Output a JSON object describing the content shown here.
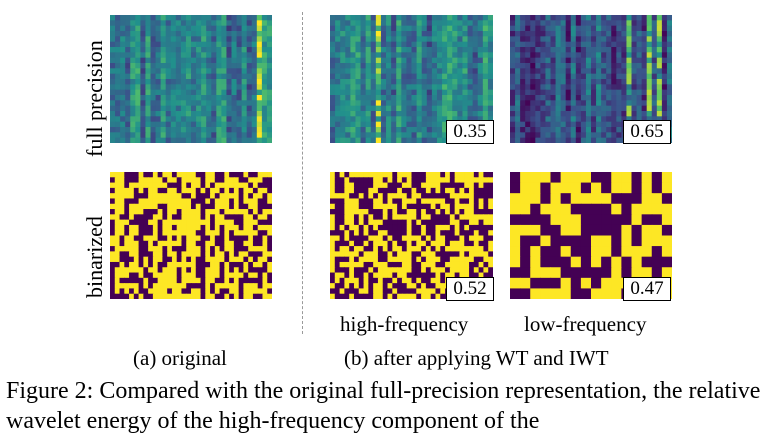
{
  "row_labels": {
    "full_precision": "full precision",
    "binarized": "binarized"
  },
  "panels": {
    "fp_original": {
      "badge": "",
      "kind": "continuous",
      "seed": 11,
      "dark": false
    },
    "fp_high": {
      "badge": "0.35",
      "kind": "continuous",
      "seed": 23,
      "dark": false
    },
    "fp_low": {
      "badge": "0.65",
      "kind": "continuous",
      "seed": 37,
      "dark": true
    },
    "bin_original": {
      "badge": "",
      "kind": "binary",
      "seed": 41,
      "fine": true
    },
    "bin_high": {
      "badge": "0.52",
      "kind": "binary",
      "seed": 53,
      "fine": true
    },
    "bin_low": {
      "badge": "0.47",
      "kind": "binary",
      "seed": 67,
      "fine": false
    }
  },
  "column_labels": {
    "high": "high-frequency",
    "low": "low-frequency"
  },
  "subcaptions": {
    "a": "(a) original",
    "b": "(b) after applying WT and IWT"
  },
  "figure_caption": "Figure 2: Compared with the original full-precision representation, the relative wavelet energy of the high-frequency component of the",
  "colors": {
    "viridis_dark": "#440154",
    "viridis_teal": "#21918c",
    "viridis_yellow": "#fde725",
    "binary_on": "#fde725",
    "binary_off": "#440154"
  }
}
